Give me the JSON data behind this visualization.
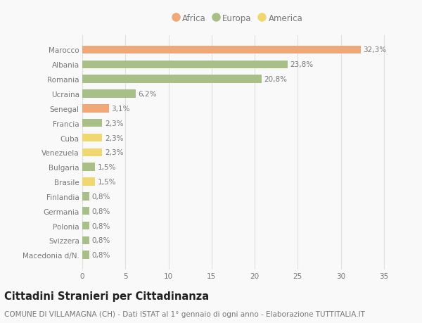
{
  "categories": [
    "Macedonia d/N.",
    "Svizzera",
    "Polonia",
    "Germania",
    "Finlandia",
    "Brasile",
    "Bulgaria",
    "Venezuela",
    "Cuba",
    "Francia",
    "Senegal",
    "Ucraina",
    "Romania",
    "Albania",
    "Marocco"
  ],
  "values": [
    0.8,
    0.8,
    0.8,
    0.8,
    0.8,
    1.5,
    1.5,
    2.3,
    2.3,
    2.3,
    3.1,
    6.2,
    20.8,
    23.8,
    32.3
  ],
  "continents": [
    "Europa",
    "Europa",
    "Europa",
    "Europa",
    "Europa",
    "America",
    "Europa",
    "America",
    "America",
    "Europa",
    "Africa",
    "Europa",
    "Europa",
    "Europa",
    "Africa"
  ],
  "labels": [
    "0,8%",
    "0,8%",
    "0,8%",
    "0,8%",
    "0,8%",
    "1,5%",
    "1,5%",
    "2,3%",
    "2,3%",
    "2,3%",
    "3,1%",
    "6,2%",
    "20,8%",
    "23,8%",
    "32,3%"
  ],
  "colors": {
    "Africa": "#F0A878",
    "Europa": "#A8C088",
    "America": "#F0D870"
  },
  "legend_order": [
    "Africa",
    "Europa",
    "America"
  ],
  "legend_colors": [
    "#F0A878",
    "#A8C088",
    "#F0D870"
  ],
  "title": "Cittadini Stranieri per Cittadinanza",
  "subtitle": "COMUNE DI VILLAMAGNA (CH) - Dati ISTAT al 1° gennaio di ogni anno - Elaborazione TUTTITALIA.IT",
  "xlim": [
    0,
    36
  ],
  "xticks": [
    0,
    5,
    10,
    15,
    20,
    25,
    30,
    35
  ],
  "background_color": "#f9f9f9",
  "grid_color": "#e0e0e0",
  "bar_height": 0.55,
  "title_fontsize": 10.5,
  "subtitle_fontsize": 7.5,
  "label_fontsize": 7.5,
  "tick_fontsize": 7.5,
  "legend_fontsize": 8.5,
  "text_color": "#777777",
  "title_color": "#222222"
}
